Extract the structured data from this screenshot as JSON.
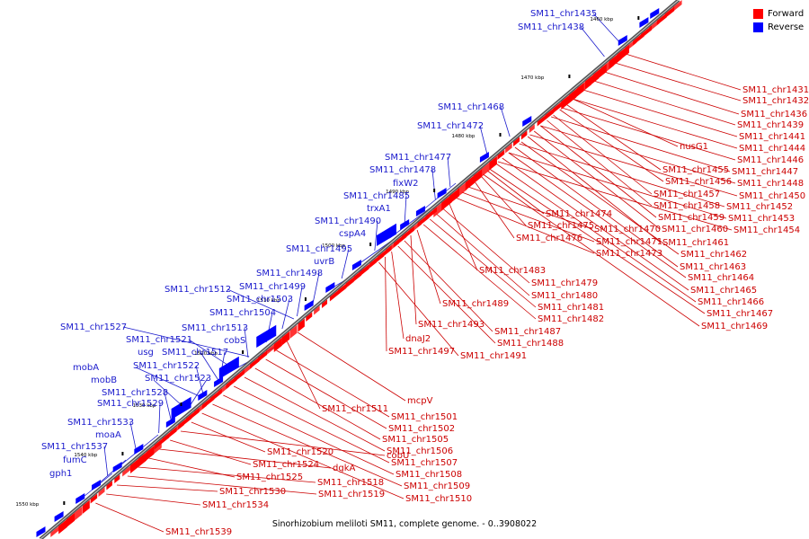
{
  "title": "Sinorhizobium meliloti SM11, complete genome. - 0..3908022",
  "legend": {
    "forward_label": "Forward",
    "reverse_label": "Reverse",
    "forward_color": "#ff0000",
    "reverse_color": "#0000ff"
  },
  "colors": {
    "forward_text": "#cc0000",
    "reverse_text": "#1a1acc",
    "backbone": "#555555"
  },
  "kbp_ticks": [
    "1460 kbp",
    "1470 kbp",
    "1480 kbp",
    "1490 kbp",
    "1500 kbp",
    "1510 kbp",
    "1520 kbp",
    "1530 kbp",
    "1540 kbp",
    "1550 kbp"
  ],
  "reverse_labels": [
    "SM11_chr1435",
    "SM11_chr1438",
    "SM11_chr1468",
    "SM11_chr1472",
    "SM11_chr1477",
    "SM11_chr1478",
    "fixW2",
    "SM11_chr1485",
    "trxA1",
    "SM11_chr1490",
    "cspA4",
    "SM11_chr1495",
    "uvrB",
    "SM11_chr1498",
    "SM11_chr1499",
    "SM11_chr1512",
    "SM11_chr1503",
    "SM11_chr1504",
    "SM11_chr1527",
    "SM11_chr1513",
    "SM11_chr1521",
    "cobS",
    "usg",
    "SM11_chr1517",
    "mobA",
    "SM11_chr1522",
    "mobB",
    "SM11_chr1523",
    "SM11_chr1528",
    "SM11_chr1529",
    "SM11_chr1533",
    "moaA",
    "SM11_chr1537",
    "fumC",
    "gph1"
  ],
  "forward_labels_right": [
    "SM11_chr1431",
    "SM11_chr1432",
    "SM11_chr1436",
    "SM11_chr1439",
    "SM11_chr1441",
    "SM11_chr1444",
    "SM11_chr1446",
    "SM11_chr1447",
    "SM11_chr1448",
    "SM11_chr1450",
    "SM11_chr1452",
    "SM11_chr1453",
    "SM11_chr1454"
  ],
  "forward_labels_mid": [
    "nusG1",
    "SM11_chr1455",
    "SM11_chr1456",
    "SM11_chr1457",
    "SM11_chr1458",
    "SM11_chr1459",
    "SM11_chr1460",
    "SM11_chr1461",
    "SM11_chr1462",
    "SM11_chr1463",
    "SM11_chr1464",
    "SM11_chr1465",
    "SM11_chr1466",
    "SM11_chr1467",
    "SM11_chr1469"
  ],
  "forward_labels_inner": [
    "SM11_chr1474",
    "SM11_chr1475",
    "SM11_chr1476",
    "SM11_chr1470",
    "SM11_chr1471",
    "SM11_chr1473",
    "SM11_chr1483",
    "SM11_chr1479",
    "SM11_chr1480",
    "SM11_chr1481",
    "SM11_chr1482",
    "SM11_chr1489",
    "SM11_chr1493",
    "SM11_chr1487",
    "SM11_chr1488",
    "dnaJ2",
    "SM11_chr1497",
    "SM11_chr1491"
  ],
  "forward_labels_low": [
    "mcpV",
    "SM11_chr1511",
    "SM11_chr1501",
    "SM11_chr1502",
    "SM11_chr1505",
    "SM11_chr1506",
    "SM11_chr1507",
    "SM11_chr1508",
    "SM11_chr1509",
    "SM11_chr1510",
    "SM11_chr1520",
    "cobU",
    "SM11_chr1524",
    "dgkA",
    "SM11_chr1525",
    "SM11_chr1518",
    "SM11_chr1519",
    "SM11_chr1530",
    "SM11_chr1534",
    "SM11_chr1539"
  ]
}
